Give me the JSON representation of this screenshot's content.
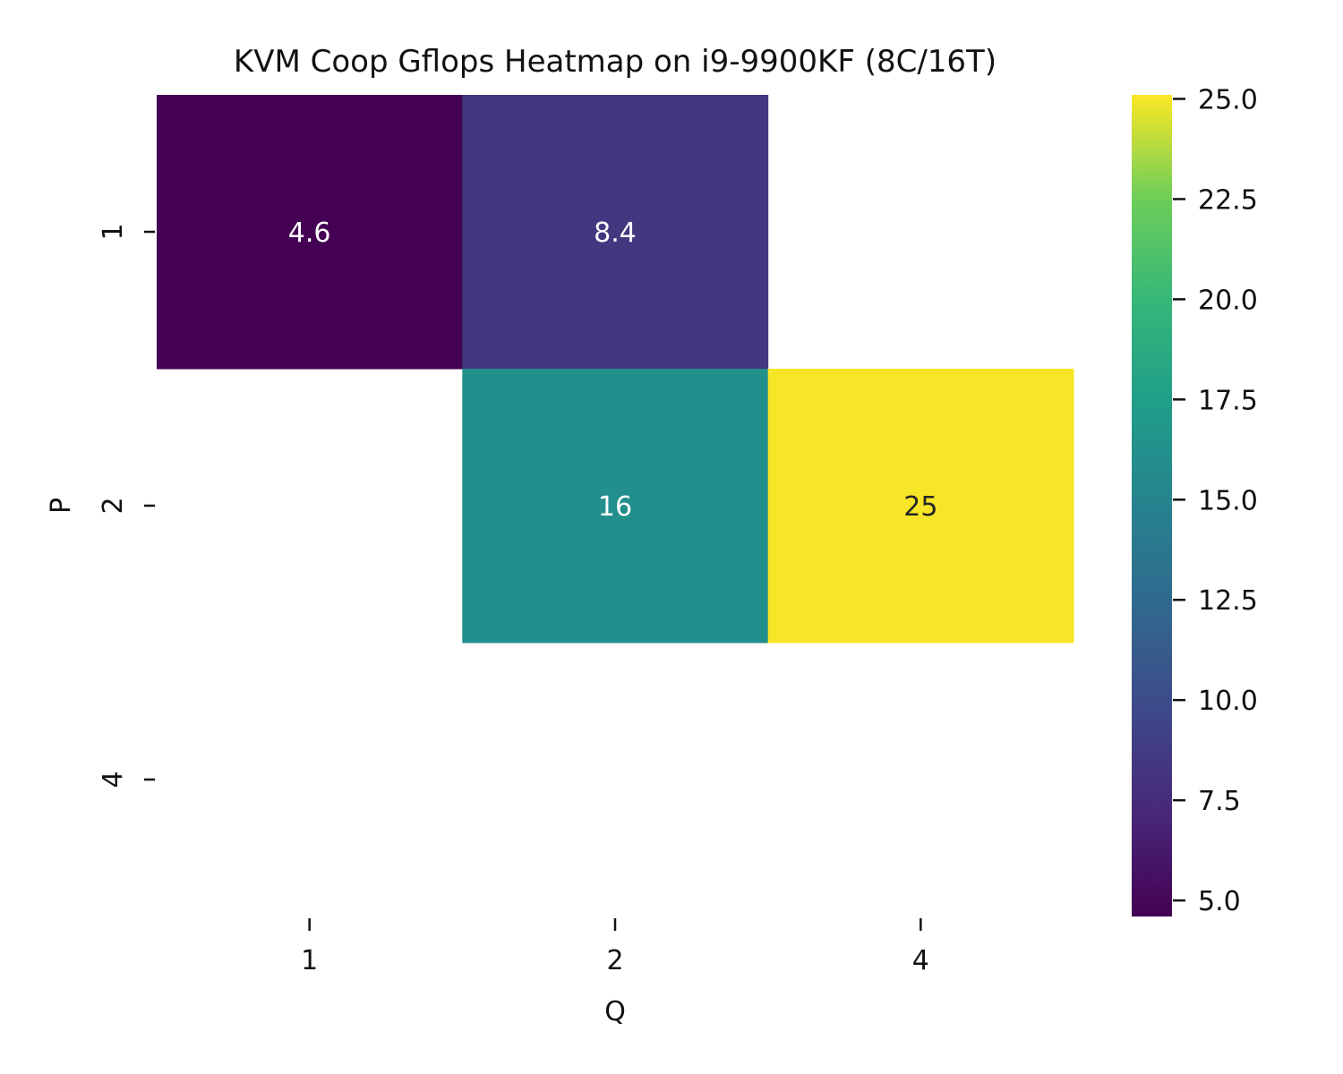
{
  "chart_data": {
    "type": "heatmap",
    "title": "KVM Coop Gflops Heatmap on i9-9900KF (8C/16T)",
    "xlabel": "Q",
    "ylabel": "P",
    "x_categories": [
      "1",
      "2",
      "4"
    ],
    "y_categories": [
      "1",
      "2",
      "4"
    ],
    "values": [
      [
        4.6,
        8.4,
        null
      ],
      [
        null,
        16,
        25
      ],
      [
        null,
        null,
        null
      ]
    ],
    "cell_labels": [
      [
        "4.6",
        "8.4",
        ""
      ],
      [
        "",
        "16",
        "25"
      ],
      [
        "",
        "",
        ""
      ]
    ],
    "colormap": "viridis",
    "colorbar": {
      "range": [
        4.6,
        25.1
      ],
      "ticks": [
        5.0,
        7.5,
        10.0,
        12.5,
        15.0,
        17.5,
        20.0,
        22.5,
        25.0
      ],
      "tick_labels": [
        "5.0",
        "7.5",
        "10.0",
        "12.5",
        "15.0",
        "17.5",
        "20.0",
        "22.5",
        "25.0"
      ]
    },
    "missing_color": "#ffffff"
  }
}
